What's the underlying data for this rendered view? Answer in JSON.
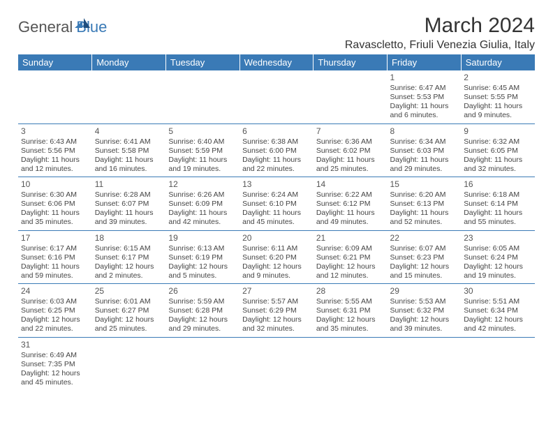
{
  "logo": {
    "part1": "General",
    "part2": "Blue"
  },
  "title": "March 2024",
  "location": "Ravascletto, Friuli Venezia Giulia, Italy",
  "dayHeaders": [
    "Sunday",
    "Monday",
    "Tuesday",
    "Wednesday",
    "Thursday",
    "Friday",
    "Saturday"
  ],
  "colors": {
    "headerBg": "#3a7ab6",
    "headerFg": "#ffffff",
    "rowBorder": "#3a7ab6",
    "text": "#444444"
  },
  "weeks": [
    [
      null,
      null,
      null,
      null,
      null,
      {
        "n": "1",
        "sunrise": "Sunrise: 6:47 AM",
        "sunset": "Sunset: 5:53 PM",
        "day1": "Daylight: 11 hours",
        "day2": "and 6 minutes."
      },
      {
        "n": "2",
        "sunrise": "Sunrise: 6:45 AM",
        "sunset": "Sunset: 5:55 PM",
        "day1": "Daylight: 11 hours",
        "day2": "and 9 minutes."
      }
    ],
    [
      {
        "n": "3",
        "sunrise": "Sunrise: 6:43 AM",
        "sunset": "Sunset: 5:56 PM",
        "day1": "Daylight: 11 hours",
        "day2": "and 12 minutes."
      },
      {
        "n": "4",
        "sunrise": "Sunrise: 6:41 AM",
        "sunset": "Sunset: 5:58 PM",
        "day1": "Daylight: 11 hours",
        "day2": "and 16 minutes."
      },
      {
        "n": "5",
        "sunrise": "Sunrise: 6:40 AM",
        "sunset": "Sunset: 5:59 PM",
        "day1": "Daylight: 11 hours",
        "day2": "and 19 minutes."
      },
      {
        "n": "6",
        "sunrise": "Sunrise: 6:38 AM",
        "sunset": "Sunset: 6:00 PM",
        "day1": "Daylight: 11 hours",
        "day2": "and 22 minutes."
      },
      {
        "n": "7",
        "sunrise": "Sunrise: 6:36 AM",
        "sunset": "Sunset: 6:02 PM",
        "day1": "Daylight: 11 hours",
        "day2": "and 25 minutes."
      },
      {
        "n": "8",
        "sunrise": "Sunrise: 6:34 AM",
        "sunset": "Sunset: 6:03 PM",
        "day1": "Daylight: 11 hours",
        "day2": "and 29 minutes."
      },
      {
        "n": "9",
        "sunrise": "Sunrise: 6:32 AM",
        "sunset": "Sunset: 6:05 PM",
        "day1": "Daylight: 11 hours",
        "day2": "and 32 minutes."
      }
    ],
    [
      {
        "n": "10",
        "sunrise": "Sunrise: 6:30 AM",
        "sunset": "Sunset: 6:06 PM",
        "day1": "Daylight: 11 hours",
        "day2": "and 35 minutes."
      },
      {
        "n": "11",
        "sunrise": "Sunrise: 6:28 AM",
        "sunset": "Sunset: 6:07 PM",
        "day1": "Daylight: 11 hours",
        "day2": "and 39 minutes."
      },
      {
        "n": "12",
        "sunrise": "Sunrise: 6:26 AM",
        "sunset": "Sunset: 6:09 PM",
        "day1": "Daylight: 11 hours",
        "day2": "and 42 minutes."
      },
      {
        "n": "13",
        "sunrise": "Sunrise: 6:24 AM",
        "sunset": "Sunset: 6:10 PM",
        "day1": "Daylight: 11 hours",
        "day2": "and 45 minutes."
      },
      {
        "n": "14",
        "sunrise": "Sunrise: 6:22 AM",
        "sunset": "Sunset: 6:12 PM",
        "day1": "Daylight: 11 hours",
        "day2": "and 49 minutes."
      },
      {
        "n": "15",
        "sunrise": "Sunrise: 6:20 AM",
        "sunset": "Sunset: 6:13 PM",
        "day1": "Daylight: 11 hours",
        "day2": "and 52 minutes."
      },
      {
        "n": "16",
        "sunrise": "Sunrise: 6:18 AM",
        "sunset": "Sunset: 6:14 PM",
        "day1": "Daylight: 11 hours",
        "day2": "and 55 minutes."
      }
    ],
    [
      {
        "n": "17",
        "sunrise": "Sunrise: 6:17 AM",
        "sunset": "Sunset: 6:16 PM",
        "day1": "Daylight: 11 hours",
        "day2": "and 59 minutes."
      },
      {
        "n": "18",
        "sunrise": "Sunrise: 6:15 AM",
        "sunset": "Sunset: 6:17 PM",
        "day1": "Daylight: 12 hours",
        "day2": "and 2 minutes."
      },
      {
        "n": "19",
        "sunrise": "Sunrise: 6:13 AM",
        "sunset": "Sunset: 6:19 PM",
        "day1": "Daylight: 12 hours",
        "day2": "and 5 minutes."
      },
      {
        "n": "20",
        "sunrise": "Sunrise: 6:11 AM",
        "sunset": "Sunset: 6:20 PM",
        "day1": "Daylight: 12 hours",
        "day2": "and 9 minutes."
      },
      {
        "n": "21",
        "sunrise": "Sunrise: 6:09 AM",
        "sunset": "Sunset: 6:21 PM",
        "day1": "Daylight: 12 hours",
        "day2": "and 12 minutes."
      },
      {
        "n": "22",
        "sunrise": "Sunrise: 6:07 AM",
        "sunset": "Sunset: 6:23 PM",
        "day1": "Daylight: 12 hours",
        "day2": "and 15 minutes."
      },
      {
        "n": "23",
        "sunrise": "Sunrise: 6:05 AM",
        "sunset": "Sunset: 6:24 PM",
        "day1": "Daylight: 12 hours",
        "day2": "and 19 minutes."
      }
    ],
    [
      {
        "n": "24",
        "sunrise": "Sunrise: 6:03 AM",
        "sunset": "Sunset: 6:25 PM",
        "day1": "Daylight: 12 hours",
        "day2": "and 22 minutes."
      },
      {
        "n": "25",
        "sunrise": "Sunrise: 6:01 AM",
        "sunset": "Sunset: 6:27 PM",
        "day1": "Daylight: 12 hours",
        "day2": "and 25 minutes."
      },
      {
        "n": "26",
        "sunrise": "Sunrise: 5:59 AM",
        "sunset": "Sunset: 6:28 PM",
        "day1": "Daylight: 12 hours",
        "day2": "and 29 minutes."
      },
      {
        "n": "27",
        "sunrise": "Sunrise: 5:57 AM",
        "sunset": "Sunset: 6:29 PM",
        "day1": "Daylight: 12 hours",
        "day2": "and 32 minutes."
      },
      {
        "n": "28",
        "sunrise": "Sunrise: 5:55 AM",
        "sunset": "Sunset: 6:31 PM",
        "day1": "Daylight: 12 hours",
        "day2": "and 35 minutes."
      },
      {
        "n": "29",
        "sunrise": "Sunrise: 5:53 AM",
        "sunset": "Sunset: 6:32 PM",
        "day1": "Daylight: 12 hours",
        "day2": "and 39 minutes."
      },
      {
        "n": "30",
        "sunrise": "Sunrise: 5:51 AM",
        "sunset": "Sunset: 6:34 PM",
        "day1": "Daylight: 12 hours",
        "day2": "and 42 minutes."
      }
    ],
    [
      {
        "n": "31",
        "sunrise": "Sunrise: 6:49 AM",
        "sunset": "Sunset: 7:35 PM",
        "day1": "Daylight: 12 hours",
        "day2": "and 45 minutes."
      },
      null,
      null,
      null,
      null,
      null,
      null
    ]
  ]
}
